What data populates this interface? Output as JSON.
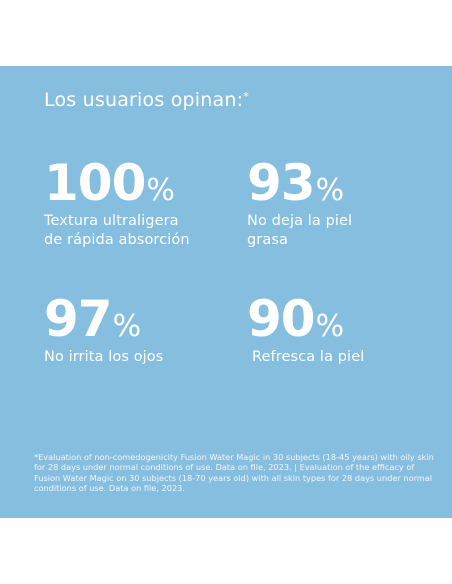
{
  "panel": {
    "background": "#86bee0",
    "headline": "Los usuarios opinan:",
    "headline_marker": "*",
    "stats": [
      {
        "value": "100",
        "unit": "%",
        "label_line1": "Textura ultraligera",
        "label_line2": "de rápida absorción"
      },
      {
        "value": "93",
        "unit": "%",
        "label_line1": "No deja la piel",
        "label_line2": "grasa"
      },
      {
        "value": "97",
        "unit": "%",
        "label_line1": "No irrita los ojos",
        "label_line2": ""
      },
      {
        "value": "90",
        "unit": "%",
        "label_line1": "Refresca la piel",
        "label_line2": ""
      }
    ],
    "footnote": "*Evaluation of non-comedogenicity Fusion Water Magic in 30 subjects (18-45 years) with oily skin for 28 days under normal conditions of use. Data on file, 2023. | Evaluation of the efficacy of Fusion Water Magic on 30 subjects (18-70 years old) with all skin types for 28 days under normal conditions of use. Data on file, 2023."
  }
}
